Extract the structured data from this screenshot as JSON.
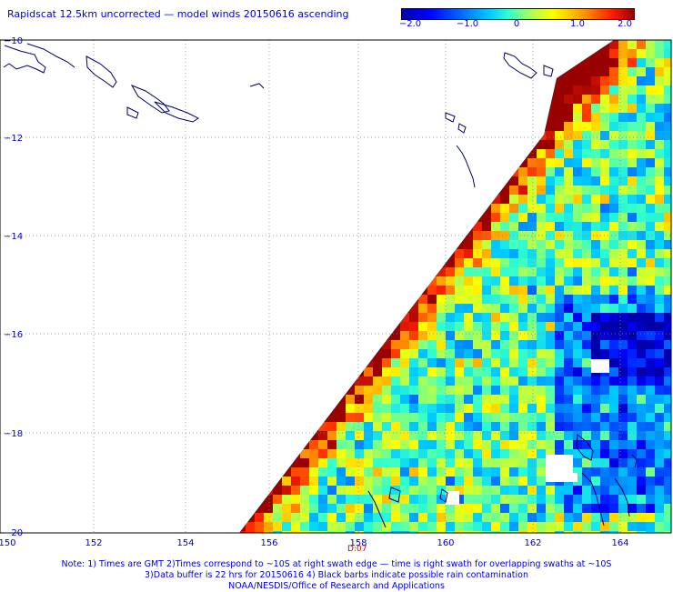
{
  "title": "Rapidscat 12.5km uncorrected — model winds 20150616 ascending",
  "colorbar": {
    "ticks": [
      "−2.0",
      "−1.0",
      "0",
      "1.0",
      "2.0"
    ]
  },
  "axes": {
    "lon_labels": [
      "150",
      "152",
      "154",
      "156",
      "158",
      "160",
      "162",
      "164"
    ],
    "lat_labels": [
      "−10",
      "−12",
      "−14",
      "−16",
      "−18",
      "−20"
    ]
  },
  "time_marker": "D:07",
  "footer": {
    "line1": "Note: 1) Times are GMT 2)Times correspond to ~10S at right swath edge — time is right swath for overlapping swaths at ~10S",
    "line2": "3)Data buffer is 22 hrs for 20150616 4) Black barbs indicate possible rain contamination",
    "line3": "NOAA/NESDIS/Office of Research and Applications"
  },
  "colors": {
    "label_blue": "#0000cc",
    "grid": "#888888",
    "coastline": "#000066",
    "time_mark": "#cc0000"
  }
}
